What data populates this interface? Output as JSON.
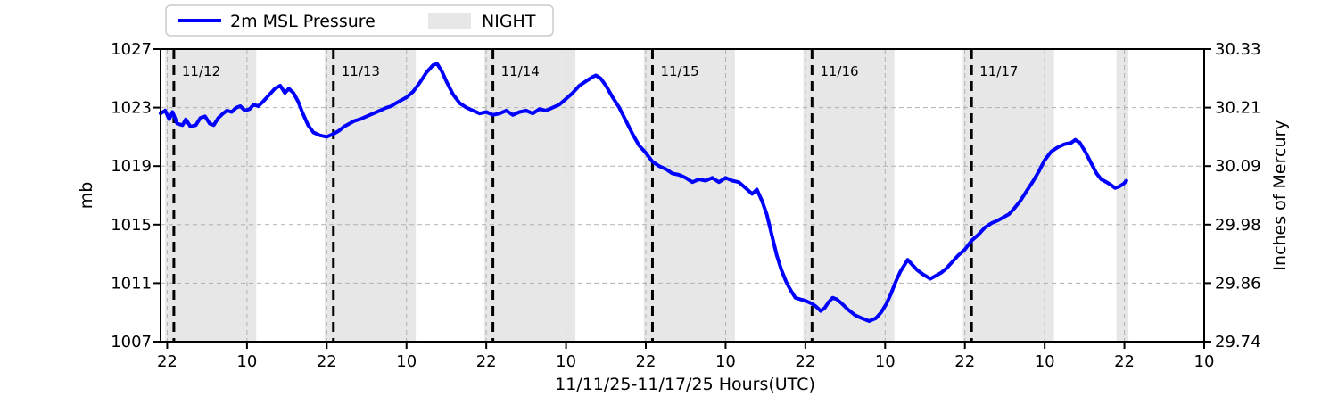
{
  "legend": {
    "series_label": "2m MSL Pressure",
    "night_label": "NIGHT"
  },
  "chart_data": {
    "type": "line",
    "title": "",
    "xlabel": "11/11/25-11/17/25  Hours(UTC)",
    "ylabel_left": "mb",
    "ylabel_right": "Inches of Mercury",
    "x_unit": "hours since 11/11/25 00:00 UTC",
    "xlim": [
      21,
      178
    ],
    "ylim_left": [
      1007,
      1027
    ],
    "ylim_right": [
      29.74,
      30.33
    ],
    "y_ticks_left": [
      1027,
      1023,
      1019,
      1015,
      1011,
      1007
    ],
    "y_tick_labels_right": [
      "30.33",
      "30.21",
      "30.09",
      "29.98",
      "29.86",
      "29.74"
    ],
    "x_tick_hours": [
      22,
      34,
      46,
      58,
      70,
      82,
      94,
      106,
      118,
      130,
      142,
      154,
      166,
      178
    ],
    "x_tick_labels": [
      "22",
      "10",
      "22",
      "10",
      "22",
      "10",
      "22",
      "10",
      "22",
      "10",
      "22",
      "10",
      "22",
      "10"
    ],
    "grid": true,
    "legend_position": "top-left above axes",
    "day_lines": [
      {
        "label": "11/12",
        "hour": 23
      },
      {
        "label": "11/13",
        "hour": 47
      },
      {
        "label": "11/14",
        "hour": 71
      },
      {
        "label": "11/15",
        "hour": 95
      },
      {
        "label": "11/16",
        "hour": 119
      },
      {
        "label": "11/17",
        "hour": 143
      }
    ],
    "night_regions_hours": [
      [
        21.7,
        35.4
      ],
      [
        45.7,
        59.4
      ],
      [
        69.7,
        83.4
      ],
      [
        93.7,
        107.4
      ],
      [
        117.7,
        131.4
      ],
      [
        141.7,
        155.4
      ],
      [
        164.8,
        166.6
      ]
    ],
    "colors": {
      "pressure_line": "#0000ff",
      "night_band": "#e7e7e7",
      "grid": "#b1b1b1",
      "day_line": "#000000",
      "day_label": "#3b3b3b",
      "legend_border": "#cbcbcb"
    },
    "series": [
      {
        "name": "2m MSL Pressure",
        "units": "mb",
        "points": [
          [
            21,
            1022.6
          ],
          [
            21.7,
            1022.8
          ],
          [
            22.3,
            1022.2
          ],
          [
            22.8,
            1022.7
          ],
          [
            23.5,
            1021.9
          ],
          [
            24.3,
            1021.8
          ],
          [
            24.8,
            1022.2
          ],
          [
            25.5,
            1021.7
          ],
          [
            26.3,
            1021.8
          ],
          [
            27,
            1022.3
          ],
          [
            27.7,
            1022.4
          ],
          [
            28.4,
            1021.9
          ],
          [
            29,
            1021.8
          ],
          [
            29.7,
            1022.3
          ],
          [
            30.4,
            1022.6
          ],
          [
            31,
            1022.8
          ],
          [
            31.7,
            1022.7
          ],
          [
            32.4,
            1023
          ],
          [
            33,
            1023.1
          ],
          [
            33.7,
            1022.8
          ],
          [
            34.4,
            1022.9
          ],
          [
            35,
            1023.2
          ],
          [
            35.7,
            1023.1
          ],
          [
            36.4,
            1023.4
          ],
          [
            37.4,
            1023.9
          ],
          [
            38.2,
            1024.3
          ],
          [
            39,
            1024.5
          ],
          [
            39.7,
            1024
          ],
          [
            40.3,
            1024.3
          ],
          [
            41,
            1024
          ],
          [
            41.7,
            1023.4
          ],
          [
            42.4,
            1022.6
          ],
          [
            43.2,
            1021.8
          ],
          [
            44,
            1021.3
          ],
          [
            45,
            1021.1
          ],
          [
            46,
            1021
          ],
          [
            47,
            1021.2
          ],
          [
            47.8,
            1021.4
          ],
          [
            48.6,
            1021.7
          ],
          [
            49.4,
            1021.9
          ],
          [
            50.2,
            1022.1
          ],
          [
            51,
            1022.2
          ],
          [
            52,
            1022.4
          ],
          [
            53,
            1022.6
          ],
          [
            54,
            1022.8
          ],
          [
            55,
            1023
          ],
          [
            55.7,
            1023.1
          ],
          [
            56.4,
            1023.3
          ],
          [
            57.2,
            1023.5
          ],
          [
            58,
            1023.7
          ],
          [
            59,
            1024.1
          ],
          [
            60,
            1024.7
          ],
          [
            61,
            1025.4
          ],
          [
            62,
            1025.9
          ],
          [
            62.6,
            1026
          ],
          [
            63.3,
            1025.5
          ],
          [
            64,
            1024.8
          ],
          [
            65,
            1023.9
          ],
          [
            66,
            1023.3
          ],
          [
            67,
            1023
          ],
          [
            68,
            1022.8
          ],
          [
            69,
            1022.6
          ],
          [
            70,
            1022.7
          ],
          [
            71,
            1022.5
          ],
          [
            72,
            1022.6
          ],
          [
            73,
            1022.8
          ],
          [
            74,
            1022.5
          ],
          [
            75,
            1022.7
          ],
          [
            76,
            1022.8
          ],
          [
            77,
            1022.6
          ],
          [
            78,
            1022.9
          ],
          [
            79,
            1022.8
          ],
          [
            80,
            1023
          ],
          [
            81,
            1023.2
          ],
          [
            82,
            1023.6
          ],
          [
            83,
            1024
          ],
          [
            84,
            1024.5
          ],
          [
            85,
            1024.8
          ],
          [
            86,
            1025.1
          ],
          [
            86.5,
            1025.2
          ],
          [
            87.2,
            1025
          ],
          [
            88,
            1024.5
          ],
          [
            89,
            1023.7
          ],
          [
            90,
            1023
          ],
          [
            91,
            1022.1
          ],
          [
            92,
            1021.2
          ],
          [
            93,
            1020.4
          ],
          [
            94,
            1019.9
          ],
          [
            95,
            1019.3
          ],
          [
            96,
            1019
          ],
          [
            97,
            1018.8
          ],
          [
            98,
            1018.5
          ],
          [
            99,
            1018.4
          ],
          [
            100,
            1018.2
          ],
          [
            101,
            1017.9
          ],
          [
            102,
            1018.1
          ],
          [
            103,
            1018
          ],
          [
            104,
            1018.2
          ],
          [
            105,
            1017.9
          ],
          [
            106,
            1018.2
          ],
          [
            107,
            1018
          ],
          [
            108,
            1017.9
          ],
          [
            109,
            1017.5
          ],
          [
            110,
            1017.1
          ],
          [
            110.7,
            1017.4
          ],
          [
            111.5,
            1016.6
          ],
          [
            112.2,
            1015.7
          ],
          [
            113,
            1014.2
          ],
          [
            113.7,
            1012.9
          ],
          [
            114.4,
            1011.9
          ],
          [
            115.1,
            1011.1
          ],
          [
            115.8,
            1010.5
          ],
          [
            116.5,
            1010
          ],
          [
            117.2,
            1009.9
          ],
          [
            118,
            1009.8
          ],
          [
            119,
            1009.6
          ],
          [
            119.6,
            1009.4
          ],
          [
            120.3,
            1009.1
          ],
          [
            120.9,
            1009.3
          ],
          [
            121.5,
            1009.7
          ],
          [
            122.1,
            1010
          ],
          [
            122.7,
            1009.9
          ],
          [
            123.5,
            1009.6
          ],
          [
            124.4,
            1009.2
          ],
          [
            125.5,
            1008.8
          ],
          [
            126.5,
            1008.6
          ],
          [
            127.6,
            1008.4
          ],
          [
            128.6,
            1008.6
          ],
          [
            129.4,
            1009
          ],
          [
            130.2,
            1009.6
          ],
          [
            130.9,
            1010.3
          ],
          [
            131.6,
            1011.1
          ],
          [
            132.3,
            1011.8
          ],
          [
            133,
            1012.3
          ],
          [
            133.4,
            1012.6
          ],
          [
            134,
            1012.3
          ],
          [
            134.8,
            1011.9
          ],
          [
            135.7,
            1011.6
          ],
          [
            136.8,
            1011.3
          ],
          [
            137.6,
            1011.5
          ],
          [
            138.4,
            1011.7
          ],
          [
            139.2,
            1012
          ],
          [
            140,
            1012.4
          ],
          [
            141,
            1012.9
          ],
          [
            142,
            1013.3
          ],
          [
            143,
            1013.9
          ],
          [
            144,
            1014.3
          ],
          [
            145,
            1014.8
          ],
          [
            146,
            1015.1
          ],
          [
            147,
            1015.3
          ],
          [
            147.8,
            1015.5
          ],
          [
            148.6,
            1015.7
          ],
          [
            149.4,
            1016.1
          ],
          [
            150.3,
            1016.6
          ],
          [
            151.3,
            1017.3
          ],
          [
            152.3,
            1018
          ],
          [
            153.2,
            1018.7
          ],
          [
            154,
            1019.4
          ],
          [
            155,
            1020
          ],
          [
            156,
            1020.3
          ],
          [
            157,
            1020.5
          ],
          [
            158,
            1020.6
          ],
          [
            158.6,
            1020.8
          ],
          [
            159.3,
            1020.6
          ],
          [
            160.2,
            1019.9
          ],
          [
            161,
            1019.2
          ],
          [
            161.8,
            1018.5
          ],
          [
            162.5,
            1018.1
          ],
          [
            163.3,
            1017.9
          ],
          [
            164,
            1017.7
          ],
          [
            164.6,
            1017.5
          ],
          [
            165.2,
            1017.6
          ],
          [
            165.9,
            1017.8
          ],
          [
            166.3,
            1018
          ]
        ]
      }
    ]
  }
}
